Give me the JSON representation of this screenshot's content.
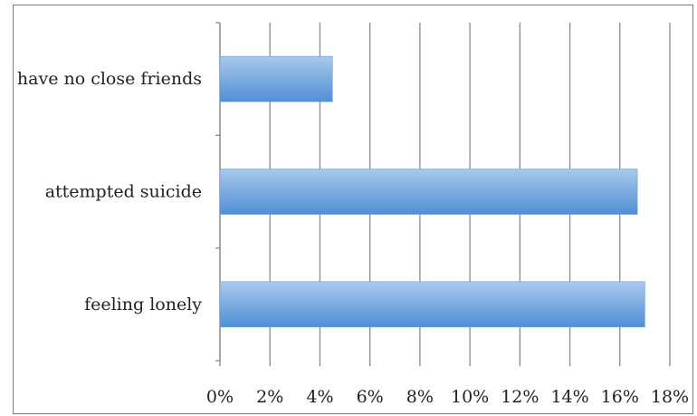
{
  "chart_data": {
    "type": "bar",
    "orientation": "horizontal",
    "categories": [
      "feeling lonely",
      "attempted suicide",
      "have no close friends"
    ],
    "values": [
      17.0,
      16.7,
      4.5
    ],
    "value_format": "percent",
    "title": "",
    "xlabel": "",
    "ylabel": "",
    "xlim": [
      0,
      18
    ],
    "x_ticks": [
      0,
      2,
      4,
      6,
      8,
      10,
      12,
      14,
      16,
      18
    ],
    "x_tick_labels": [
      "0%",
      "2%",
      "4%",
      "6%",
      "8%",
      "10%",
      "12%",
      "14%",
      "16%",
      "18%"
    ],
    "grid": "vertical",
    "legend": "none",
    "bar_color_light": "#a9c9ec",
    "bar_color_dark": "#4f8fd6",
    "grid_color": "#8a8a8a"
  }
}
